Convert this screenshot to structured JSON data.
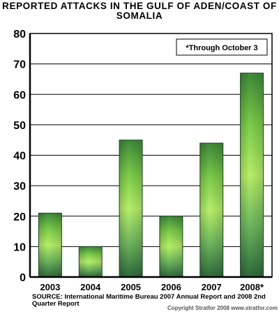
{
  "title_line1": "REPORTED ATTACKS IN THE GULF OF ADEN/COAST OF",
  "title_line2": "SOMALIA",
  "note": "*Through October 3",
  "source": "SOURCE: International Maritime Bureau 2007 Annual Report and 2008 2nd Quarter Report",
  "copyright": "Copyright Stratfor 2008   www.stratfor.com",
  "colors": {
    "bar_dark": "#2e6a3c",
    "bar_light": "#b7f06a",
    "axis": "#000000"
  },
  "chart_data": {
    "type": "bar",
    "categories": [
      "2003",
      "2004",
      "2005",
      "2006",
      "2007",
      "2008*"
    ],
    "values": [
      21,
      10,
      45,
      20,
      44,
      67
    ],
    "ylim": [
      0,
      80
    ],
    "yticks": [
      0,
      10,
      20,
      30,
      40,
      50,
      60,
      70,
      80
    ],
    "grid": true,
    "legend": "none"
  }
}
